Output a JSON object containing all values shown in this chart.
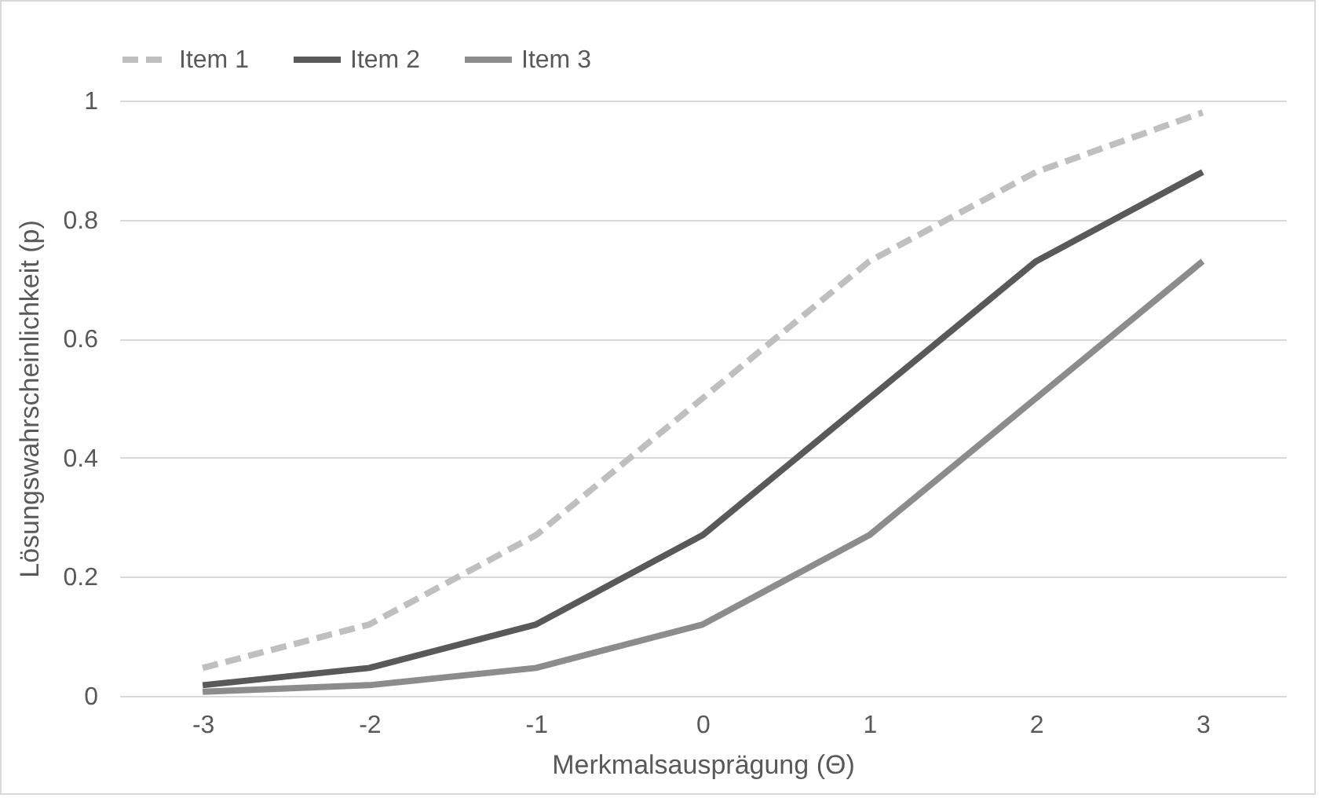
{
  "chart_data": {
    "type": "line",
    "xlabel": "Merkmalsausprägung (Θ)",
    "ylabel": "Lösungswahrscheinlichkeit (p)",
    "categories": [
      "-3",
      "-2",
      "-1",
      "0",
      "1",
      "2",
      "3"
    ],
    "series": [
      {
        "name": "Item 1",
        "color": "#bfbfbf",
        "line_style": "dashed",
        "values": [
          0.047,
          0.12,
          0.27,
          0.5,
          0.73,
          0.88,
          0.98
        ]
      },
      {
        "name": "Item 2",
        "color": "#595959",
        "line_style": "solid",
        "values": [
          0.018,
          0.047,
          0.12,
          0.27,
          0.5,
          0.73,
          0.88
        ]
      },
      {
        "name": "Item 3",
        "color": "#8c8c8c",
        "line_style": "solid",
        "values": [
          0.007,
          0.018,
          0.047,
          0.12,
          0.27,
          0.5,
          0.73
        ]
      }
    ],
    "ylim": [
      0,
      1
    ],
    "yticks": [
      0,
      0.2,
      0.4,
      0.6,
      0.8,
      1
    ],
    "grid": "y",
    "legend": "top",
    "marker": "none"
  }
}
